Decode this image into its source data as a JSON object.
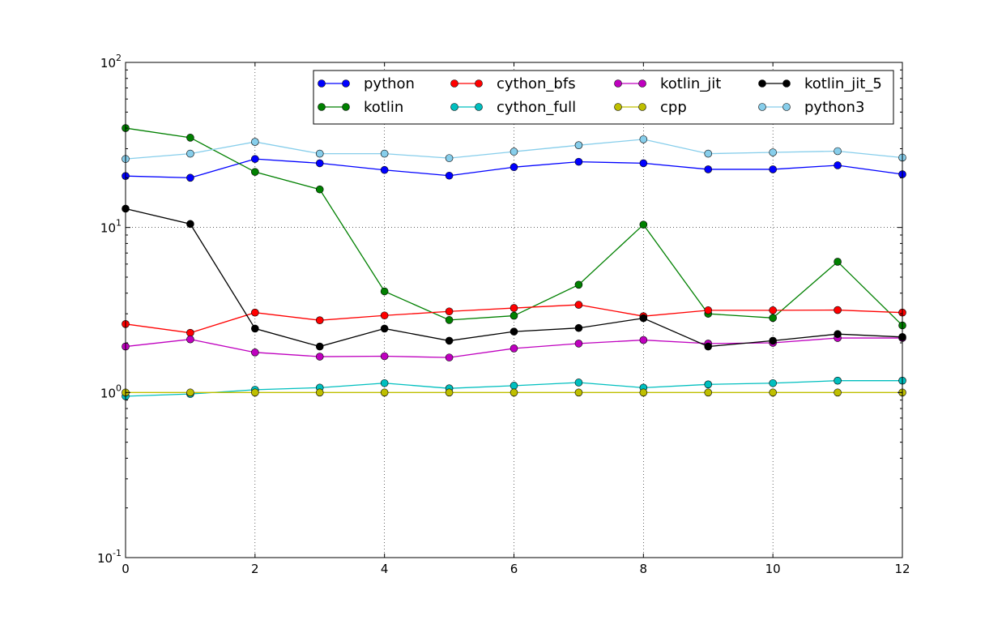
{
  "chart_data": {
    "type": "line",
    "title": "",
    "xlabel": "",
    "ylabel": "",
    "x": [
      0,
      1,
      2,
      3,
      4,
      5,
      6,
      7,
      8,
      9,
      10,
      11,
      12
    ],
    "xlim": [
      0,
      12
    ],
    "ylim": [
      0.1,
      100
    ],
    "yscale": "log",
    "grid": true,
    "legend_location": "top-right",
    "legend_columns": 4,
    "x_tick_labels": [
      "0",
      "2",
      "4",
      "6",
      "8",
      "10",
      "12"
    ],
    "y_tick_labels": [
      {
        "base": "10",
        "exp": "-1"
      },
      {
        "base": "10",
        "exp": "0"
      },
      {
        "base": "10",
        "exp": "1"
      },
      {
        "base": "10",
        "exp": "2"
      }
    ],
    "series": [
      {
        "name": "python",
        "color": "#0000ff",
        "values": [
          20.5,
          20.0,
          26.0,
          24.5,
          22.3,
          20.6,
          23.2,
          25.0,
          24.5,
          22.5,
          22.5,
          23.8,
          21.0
        ]
      },
      {
        "name": "kotlin",
        "color": "#008000",
        "values": [
          40.0,
          35.0,
          21.7,
          17.0,
          4.1,
          2.75,
          2.92,
          4.5,
          10.4,
          3.0,
          2.83,
          6.2,
          2.55
        ]
      },
      {
        "name": "cython_bfs",
        "color": "#ff0000",
        "values": [
          2.6,
          2.3,
          3.05,
          2.74,
          2.93,
          3.1,
          3.25,
          3.4,
          2.9,
          3.15,
          3.15,
          3.16,
          3.05
        ]
      },
      {
        "name": "cython_full",
        "color": "#00bfbf",
        "values": [
          0.95,
          0.98,
          1.04,
          1.07,
          1.14,
          1.06,
          1.1,
          1.15,
          1.07,
          1.12,
          1.14,
          1.18,
          1.18
        ]
      },
      {
        "name": "kotlin_jit",
        "color": "#bf00bf",
        "values": [
          1.9,
          2.1,
          1.75,
          1.65,
          1.66,
          1.63,
          1.85,
          1.98,
          2.08,
          1.98,
          2.0,
          2.14,
          2.14
        ]
      },
      {
        "name": "cpp",
        "color": "#bfbf00",
        "values": [
          1.0,
          1.0,
          1.0,
          1.0,
          1.0,
          1.0,
          1.0,
          1.0,
          1.0,
          1.0,
          1.0,
          1.0,
          1.0
        ]
      },
      {
        "name": "kotlin_jit_5",
        "color": "#000000",
        "values": [
          13.0,
          10.5,
          2.44,
          1.9,
          2.44,
          2.06,
          2.34,
          2.46,
          2.82,
          1.9,
          2.06,
          2.26,
          2.17
        ]
      },
      {
        "name": "python3",
        "color": "#87ceeb",
        "values": [
          26.0,
          28.0,
          33.0,
          28.0,
          28.0,
          26.3,
          28.8,
          31.5,
          34.2,
          28.0,
          28.5,
          29.0,
          26.5
        ]
      }
    ]
  }
}
